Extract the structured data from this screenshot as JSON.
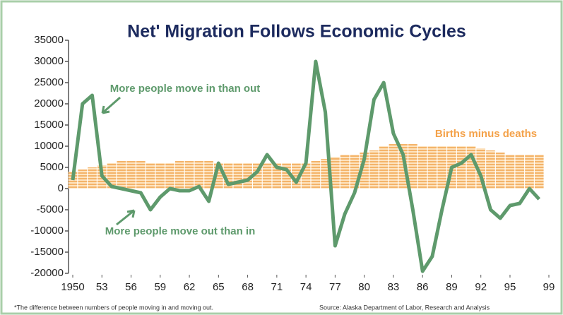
{
  "chart_data": {
    "type": "combo",
    "title": "Net' Migration Follows Economic Cycles",
    "x": [
      1950,
      1951,
      1952,
      1953,
      1954,
      1955,
      1956,
      1957,
      1958,
      1959,
      1960,
      1961,
      1962,
      1963,
      1964,
      1965,
      1966,
      1967,
      1968,
      1969,
      1970,
      1971,
      1972,
      1973,
      1974,
      1975,
      1976,
      1977,
      1978,
      1979,
      1980,
      1981,
      1982,
      1983,
      1984,
      1985,
      1986,
      1987,
      1988,
      1989,
      1990,
      1991,
      1992,
      1993,
      1994,
      1995,
      1996,
      1997,
      1998
    ],
    "series": [
      {
        "name": "Births minus deaths",
        "kind": "bar",
        "color": "#f4b46a",
        "values": [
          4000,
          4500,
          5000,
          5500,
          6000,
          6500,
          6500,
          6500,
          6000,
          6000,
          6000,
          6500,
          6500,
          6500,
          6500,
          6000,
          6000,
          6000,
          6000,
          6000,
          6000,
          6000,
          6000,
          6000,
          6000,
          6500,
          7000,
          7500,
          8000,
          8000,
          8500,
          9000,
          10000,
          10500,
          10500,
          10500,
          10000,
          10000,
          10000,
          10000,
          10000,
          10000,
          9500,
          9000,
          8500,
          8000,
          8000,
          8000,
          8000
        ]
      },
      {
        "kind": "line",
        "color": "#5e9a6c",
        "values": [
          2000,
          20000,
          22000,
          3000,
          500,
          0,
          -500,
          -1000,
          -5000,
          -2000,
          0,
          -500,
          -500,
          500,
          -3000,
          6000,
          1000,
          1500,
          2000,
          4000,
          8000,
          5000,
          4500,
          1500,
          6000,
          30000,
          18000,
          -13500,
          -6000,
          -1000,
          7000,
          21000,
          25000,
          13000,
          8000,
          -5000,
          -19500,
          -16000,
          -5000,
          5000,
          6000,
          8000,
          3000,
          -5000,
          -7000,
          -4000,
          -3500,
          0,
          -2500
        ]
      }
    ],
    "xlim": [
      1950,
      1999
    ],
    "xticks": [
      {
        "value": 1950,
        "label": "1950"
      },
      {
        "value": 1953,
        "label": "53"
      },
      {
        "value": 1956,
        "label": "56"
      },
      {
        "value": 1959,
        "label": "59"
      },
      {
        "value": 1962,
        "label": "62"
      },
      {
        "value": 1965,
        "label": "65"
      },
      {
        "value": 1968,
        "label": "68"
      },
      {
        "value": 1971,
        "label": "71"
      },
      {
        "value": 1974,
        "label": "74"
      },
      {
        "value": 1977,
        "label": "77"
      },
      {
        "value": 1980,
        "label": "80"
      },
      {
        "value": 1983,
        "label": "83"
      },
      {
        "value": 1986,
        "label": "86"
      },
      {
        "value": 1989,
        "label": "89"
      },
      {
        "value": 1992,
        "label": "92"
      },
      {
        "value": 1995,
        "label": "95"
      },
      {
        "value": 1999,
        "label": "99"
      }
    ],
    "ylim": [
      -20000,
      35000
    ],
    "yticks": [
      -20000,
      -15000,
      -10000,
      -5000,
      0,
      5000,
      10000,
      15000,
      20000,
      25000,
      30000,
      35000
    ],
    "annotations": [
      "More people move in than out",
      "More people move out than in"
    ],
    "footnote": "*The difference between numbers of people moving in and moving out.",
    "source": "Source: Alaska Department of Labor, Research and Analysis"
  }
}
